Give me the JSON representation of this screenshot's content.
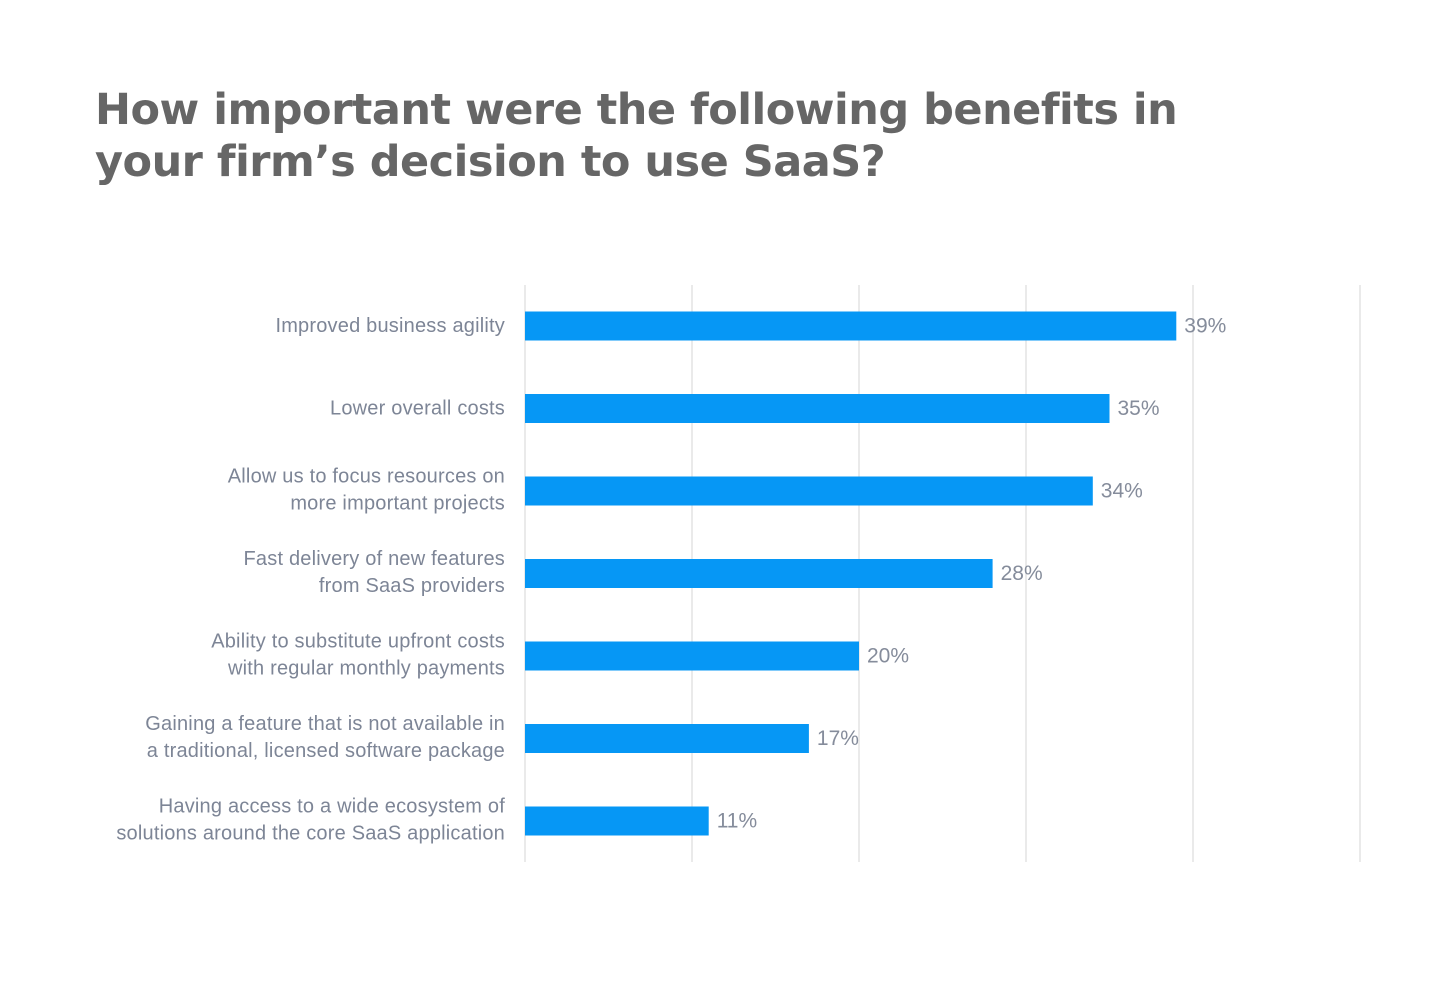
{
  "chart_data": {
    "type": "bar",
    "orientation": "horizontal",
    "title": "How important were the following benefits in your firm’s decision to use SaaS?",
    "title_lines": [
      "How important were the following benefits in",
      "your firm’s decision to use SaaS?"
    ],
    "categories": [
      [
        "Improved business agility"
      ],
      [
        "Lower overall costs"
      ],
      [
        "Allow us to focus resources on",
        "more important projects"
      ],
      [
        "Fast delivery of new features",
        "from SaaS providers"
      ],
      [
        "Ability to substitute upfront costs",
        "with regular monthly payments"
      ],
      [
        "Gaining a feature that is not available in",
        "a traditional, licensed software package"
      ],
      [
        "Having access to a wide ecosystem of",
        "solutions around the core SaaS application"
      ]
    ],
    "values": [
      39,
      35,
      34,
      28,
      20,
      17,
      11
    ],
    "value_labels": [
      "39%",
      "35%",
      "34%",
      "28%",
      "20%",
      "17%",
      "11%"
    ],
    "xlim": [
      0,
      50
    ],
    "gridline_step": 10,
    "xlabel": "",
    "ylabel": "",
    "grid": true,
    "bar_color": "#0697f5",
    "label_color": "#7d8596",
    "title_color": "#666666"
  }
}
